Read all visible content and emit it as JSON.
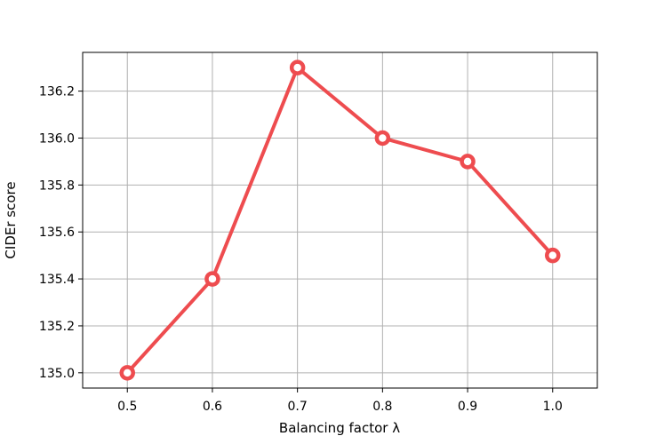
{
  "chart_data": {
    "type": "line",
    "xlabel": "Balancing factor λ",
    "ylabel": "CIDEr score",
    "x": [
      0.5,
      0.6,
      0.7,
      0.8,
      0.9,
      1.0
    ],
    "series": [
      {
        "values": [
          135.0,
          135.4,
          136.3,
          136.0,
          135.9,
          135.5
        ]
      }
    ],
    "xticks": [
      "0.5",
      "0.6",
      "0.7",
      "0.8",
      "0.9",
      "1.0"
    ],
    "yticks": [
      "135.0",
      "135.2",
      "135.4",
      "135.6",
      "135.8",
      "136.0",
      "136.2"
    ],
    "xlim": [
      0.4475,
      1.0525
    ],
    "ylim": [
      134.935,
      136.365
    ],
    "grid": true,
    "line_color": "#ee4c4f",
    "marker_style": "hollow-circle"
  }
}
